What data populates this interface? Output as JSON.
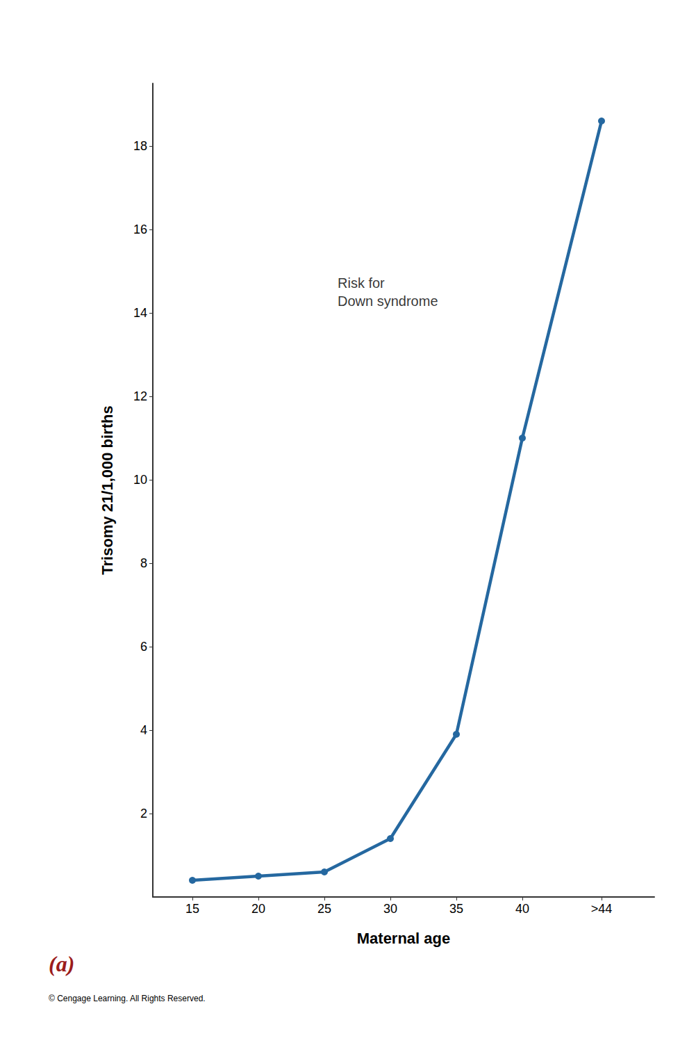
{
  "chart_data": {
    "type": "line",
    "x": [
      15,
      20,
      25,
      30,
      35,
      40,
      46
    ],
    "values": [
      0.4,
      0.5,
      0.6,
      1.4,
      3.9,
      11.0,
      18.6
    ],
    "color": "#2568a0",
    "marker": "circle",
    "x_label": "Maternal age",
    "y_label": "Trisomy 21/1,000 births",
    "xlim": [
      12,
      50
    ],
    "xticks": [
      15,
      20,
      25,
      30,
      35,
      40,
      {
        "value": 46,
        "label": ">44"
      }
    ],
    "ylim": [
      0,
      19.5
    ],
    "yticks": [
      2,
      4,
      6,
      8,
      10,
      12,
      14,
      16,
      18
    ],
    "grid": false,
    "annotations": [
      {
        "text": "Risk for\nDown syndrome",
        "x": 26,
        "y": 14.5
      },
      {
        "text": "(a)",
        "color": "#9b1c1c"
      },
      {
        "text": "© Cengage Learning. All Rights Reserved."
      }
    ]
  }
}
